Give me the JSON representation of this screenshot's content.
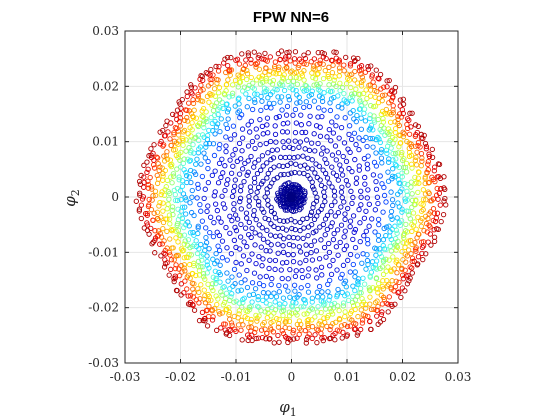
{
  "chart_data": {
    "type": "scatter",
    "title": "FPW NN=6",
    "xlabel": {
      "symbol": "φ",
      "sub": "1"
    },
    "ylabel": {
      "symbol": "φ",
      "sub": "2"
    },
    "xlim": [
      -0.03,
      0.03
    ],
    "ylim": [
      -0.03,
      0.03
    ],
    "x_ticks": [
      -0.03,
      -0.02,
      -0.01,
      0,
      0.01,
      0.02,
      0.03
    ],
    "x_tick_labels": [
      "-0.03",
      "-0.02",
      "-0.01",
      "0",
      "0.01",
      "0.02",
      "0.03"
    ],
    "y_ticks": [
      -0.03,
      -0.02,
      -0.01,
      0,
      0.01,
      0.02,
      0.03
    ],
    "y_tick_labels": [
      "-0.03",
      "-0.02",
      "-0.01",
      "0",
      "0.01",
      "0.02",
      "0.03"
    ],
    "grid": true,
    "marker": "open-circle",
    "colormap": "jet",
    "series": [
      {
        "radius": 0.0012,
        "count": 36,
        "color": "#00008f"
      },
      {
        "radius": 0.0018,
        "count": 40,
        "color": "#00008f"
      },
      {
        "radius": 0.0024,
        "count": 44,
        "color": "#00009f"
      },
      {
        "radius": 0.0045,
        "count": 40,
        "color": "#0000a8"
      },
      {
        "radius": 0.006,
        "count": 48,
        "color": "#0000af"
      },
      {
        "radius": 0.0075,
        "count": 54,
        "color": "#0000b8"
      },
      {
        "radius": 0.009,
        "count": 58,
        "color": "#0000bf"
      },
      {
        "radius": 0.0105,
        "count": 62,
        "color": "#0000c8"
      },
      {
        "radius": 0.012,
        "count": 66,
        "color": "#0000cf"
      },
      {
        "radius": 0.0135,
        "count": 70,
        "color": "#0000d8"
      },
      {
        "radius": 0.015,
        "count": 74,
        "color": "#0010df"
      },
      {
        "radius": 0.0165,
        "count": 78,
        "color": "#0040ff"
      },
      {
        "radius": 0.0178,
        "count": 90,
        "color": "#0080ff"
      },
      {
        "radius": 0.0188,
        "count": 110,
        "color": "#00b0ff"
      },
      {
        "radius": 0.0196,
        "count": 120,
        "color": "#20e0ff"
      },
      {
        "radius": 0.0204,
        "count": 130,
        "color": "#60ffcf"
      },
      {
        "radius": 0.0212,
        "count": 135,
        "color": "#90ff70"
      },
      {
        "radius": 0.022,
        "count": 140,
        "color": "#d0ff30"
      },
      {
        "radius": 0.0228,
        "count": 145,
        "color": "#ffe000"
      },
      {
        "radius": 0.0236,
        "count": 150,
        "color": "#ffb000"
      },
      {
        "radius": 0.0244,
        "count": 155,
        "color": "#ff7000"
      },
      {
        "radius": 0.0252,
        "count": 160,
        "color": "#ff3000"
      },
      {
        "radius": 0.026,
        "count": 165,
        "color": "#e00000"
      },
      {
        "radius": 0.0268,
        "count": 160,
        "color": "#b00000"
      }
    ],
    "center_cluster": {
      "radius": 0.0006,
      "count": 30,
      "color": "#000080"
    }
  }
}
